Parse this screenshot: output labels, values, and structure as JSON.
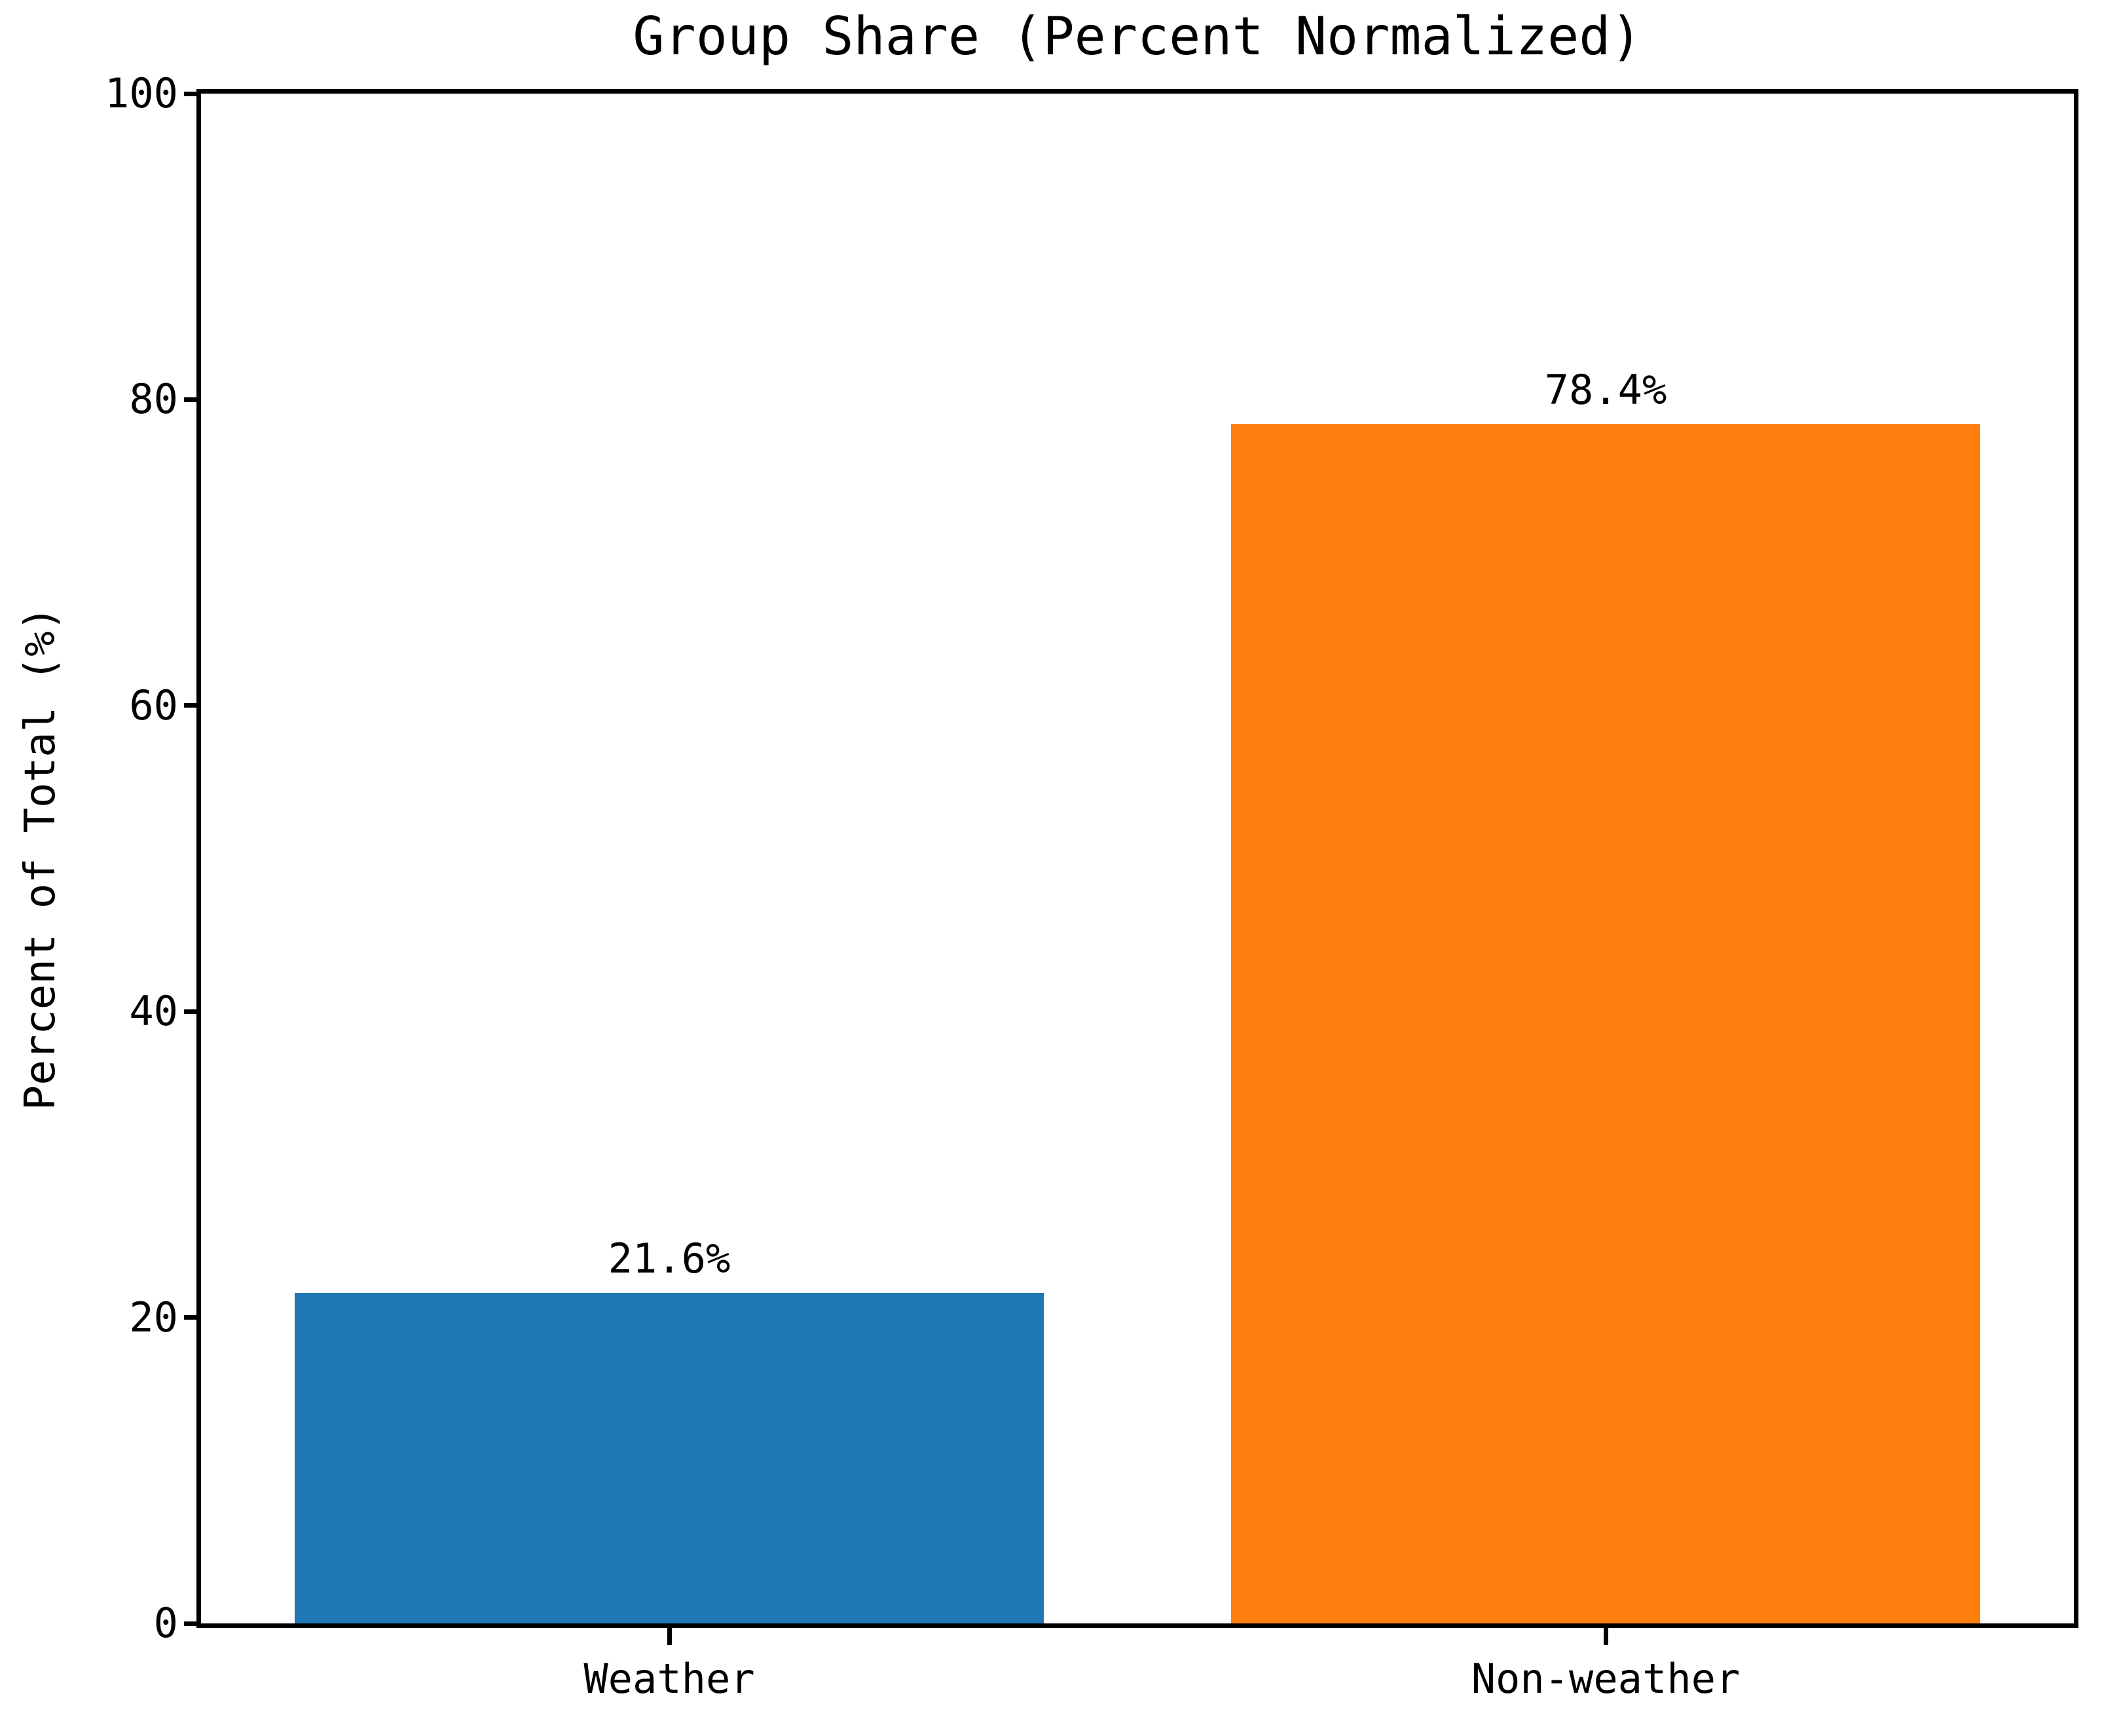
{
  "figure": {
    "background_color": "#ffffff",
    "text_color": "#000000",
    "axis_color": "#000000"
  },
  "chart_data": {
    "type": "bar",
    "title": "Group Share (Percent Normalized)",
    "xlabel": "",
    "ylabel": "Percent of Total (%)",
    "categories": [
      "Weather",
      "Non-weather"
    ],
    "values": [
      21.6,
      78.4
    ],
    "value_labels": [
      "21.6%",
      "78.4%"
    ],
    "bar_colors": [
      "#1f77b4",
      "#ff7f0e"
    ],
    "ylim": [
      0,
      100
    ],
    "yticks": [
      "0",
      "20",
      "40",
      "60",
      "80",
      "100"
    ],
    "grid": false,
    "legend_position": "none",
    "frame": "full-box",
    "tick_direction": "out"
  }
}
